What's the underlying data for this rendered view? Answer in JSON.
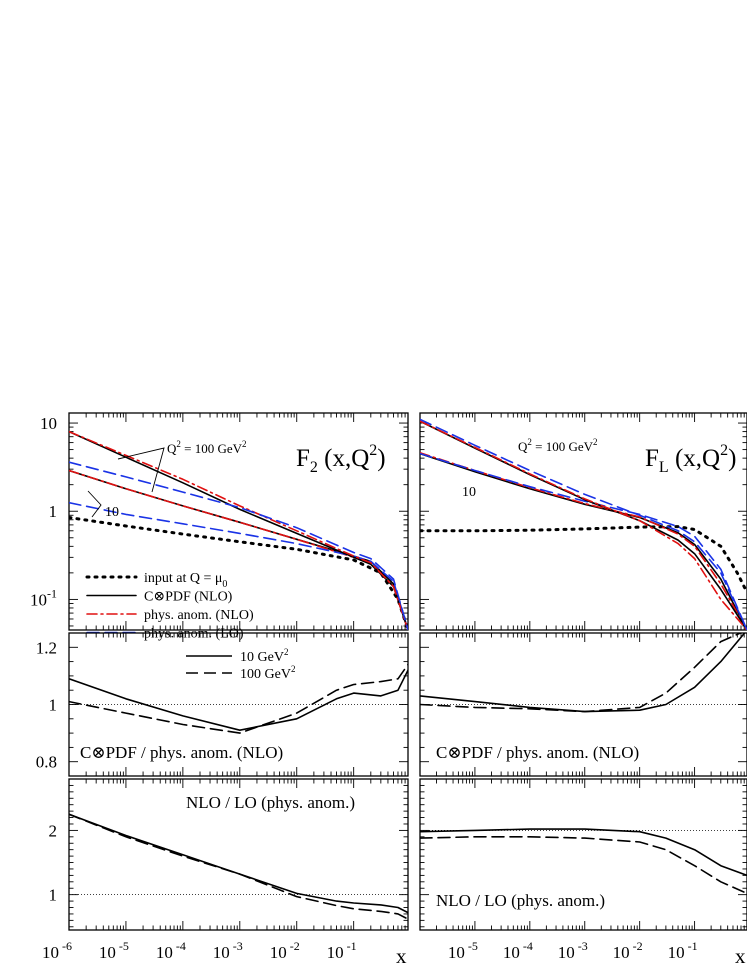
{
  "chart_data": [
    {
      "type": "line",
      "panel": "F2-main",
      "title_main": "F",
      "title_sub": "2",
      "title_arg": " (x,Q",
      "title_sup": "2",
      "title_close": ")",
      "x_scale": "log",
      "y_scale": "log",
      "xlim": [
        1e-06,
        0.9
      ],
      "ylim": [
        0.045,
        13
      ],
      "yticks": [
        {
          "value": 10,
          "base": "10",
          "exp": ""
        },
        {
          "value": 1,
          "base": "1",
          "exp": ""
        },
        {
          "value": 0.1,
          "base": "10",
          "exp": "-1"
        }
      ],
      "annotations": [
        {
          "text": "Q",
          "sup": "2",
          "rest": " = 100 GeV",
          "sup2": "2"
        },
        {
          "text": "10"
        }
      ],
      "legend": {
        "placement": "lower-left",
        "entries": [
          {
            "style": "dotted",
            "color": "#000000",
            "label": "input at Q = μ",
            "sub": "0"
          },
          {
            "style": "solid",
            "color": "#000000",
            "label": "C⊗PDF (NLO)"
          },
          {
            "style": "dashdot",
            "color": "#e01010",
            "label": "phys. anom. (NLO)"
          },
          {
            "style": "dashed",
            "color": "#1a33e6",
            "label": "phys. anom. (LO)"
          }
        ]
      },
      "series": [
        {
          "style": "dotted",
          "color": "#000000",
          "x": [
            1e-06,
            1e-05,
            0.0001,
            0.001,
            0.01,
            0.1,
            0.3,
            0.6,
            0.9
          ],
          "y": [
            0.85,
            0.68,
            0.55,
            0.45,
            0.37,
            0.28,
            0.2,
            0.1,
            0.045
          ]
        },
        {
          "style": "solid",
          "color": "#000000",
          "x": [
            1e-06,
            1e-05,
            0.0001,
            0.001,
            0.01,
            0.1,
            0.2,
            0.5,
            0.9
          ],
          "y": [
            2.9,
            1.8,
            1.15,
            0.75,
            0.48,
            0.31,
            0.27,
            0.15,
            0.045
          ]
        },
        {
          "style": "dashdot",
          "color": "#e01010",
          "x": [
            1e-06,
            1e-05,
            0.0001,
            0.001,
            0.01,
            0.1,
            0.2,
            0.5,
            0.9
          ],
          "y": [
            2.9,
            1.8,
            1.15,
            0.75,
            0.48,
            0.3,
            0.26,
            0.14,
            0.045
          ]
        },
        {
          "style": "dashed",
          "color": "#1a33e6",
          "x": [
            1e-06,
            1e-05,
            0.0001,
            0.001,
            0.01,
            0.1,
            0.2,
            0.5,
            0.9
          ],
          "y": [
            1.25,
            0.92,
            0.72,
            0.56,
            0.43,
            0.31,
            0.27,
            0.16,
            0.045
          ]
        },
        {
          "style": "solid",
          "color": "#000000",
          "x": [
            1e-06,
            1e-05,
            0.0001,
            0.001,
            0.01,
            0.1,
            0.2,
            0.5,
            0.9
          ],
          "y": [
            8.0,
            4.1,
            2.1,
            1.05,
            0.56,
            0.3,
            0.25,
            0.14,
            0.045
          ]
        },
        {
          "style": "dashdot",
          "color": "#e01010",
          "x": [
            1e-06,
            1e-05,
            0.0001,
            0.001,
            0.01,
            0.1,
            0.2,
            0.5,
            0.9
          ],
          "y": [
            8.0,
            4.3,
            2.3,
            1.15,
            0.6,
            0.31,
            0.26,
            0.14,
            0.045
          ]
        },
        {
          "style": "dashed",
          "color": "#1a33e6",
          "x": [
            1e-06,
            1e-05,
            0.0001,
            0.001,
            0.01,
            0.1,
            0.2,
            0.5,
            0.9
          ],
          "y": [
            3.6,
            2.45,
            1.65,
            1.1,
            0.65,
            0.34,
            0.29,
            0.17,
            0.045
          ]
        }
      ]
    },
    {
      "type": "line",
      "panel": "FL-main",
      "title_main": "F",
      "title_sub": "L",
      "title_arg": " (x,Q",
      "title_sup": "2",
      "title_close": ")",
      "x_scale": "log",
      "y_scale": "log",
      "xlim": [
        1e-06,
        0.9
      ],
      "ylim": [
        0.045,
        13
      ],
      "annotations": [
        {
          "text": "Q",
          "sup": "2",
          "rest": " = 100 GeV",
          "sup2": "2"
        },
        {
          "text": "10"
        }
      ],
      "series": [
        {
          "style": "dotted",
          "color": "#000000",
          "x": [
            1e-06,
            1e-05,
            0.0001,
            0.001,
            0.01,
            0.05,
            0.1,
            0.3,
            0.6,
            0.9
          ],
          "y": [
            0.6,
            0.6,
            0.61,
            0.63,
            0.66,
            0.67,
            0.62,
            0.4,
            0.2,
            0.12
          ]
        },
        {
          "style": "solid",
          "color": "#000000",
          "x": [
            1e-06,
            1e-05,
            0.0001,
            0.001,
            0.01,
            0.05,
            0.1,
            0.3,
            0.9
          ],
          "y": [
            4.5,
            2.8,
            1.8,
            1.2,
            0.85,
            0.57,
            0.42,
            0.17,
            0.045
          ]
        },
        {
          "style": "dashdot",
          "color": "#e01010",
          "x": [
            1e-06,
            1e-05,
            0.0001,
            0.001,
            0.01,
            0.05,
            0.1,
            0.3,
            0.9
          ],
          "y": [
            4.6,
            2.9,
            1.85,
            1.22,
            0.86,
            0.55,
            0.4,
            0.15,
            0.045
          ]
        },
        {
          "style": "dashed",
          "color": "#1a33e6",
          "x": [
            1e-06,
            1e-05,
            0.0001,
            0.001,
            0.01,
            0.05,
            0.1,
            0.3,
            0.9
          ],
          "y": [
            4.5,
            2.9,
            1.9,
            1.3,
            0.92,
            0.67,
            0.52,
            0.22,
            0.045
          ]
        },
        {
          "style": "solid",
          "color": "#000000",
          "x": [
            1e-06,
            1e-05,
            0.0001,
            0.001,
            0.01,
            0.05,
            0.1,
            0.3,
            0.9
          ],
          "y": [
            10.5,
            5.2,
            2.6,
            1.35,
            0.78,
            0.47,
            0.33,
            0.13,
            0.045
          ]
        },
        {
          "style": "dashdot",
          "color": "#e01010",
          "x": [
            1e-06,
            1e-05,
            0.0001,
            0.001,
            0.01,
            0.05,
            0.1,
            0.3,
            0.9
          ],
          "y": [
            10.5,
            5.3,
            2.65,
            1.38,
            0.78,
            0.43,
            0.29,
            0.1,
            0.045
          ]
        },
        {
          "style": "dashed",
          "color": "#1a33e6",
          "x": [
            1e-06,
            1e-05,
            0.0001,
            0.001,
            0.01,
            0.05,
            0.1,
            0.3,
            0.9
          ],
          "y": [
            11.0,
            5.6,
            2.9,
            1.55,
            0.9,
            0.6,
            0.45,
            0.2,
            0.045
          ]
        }
      ]
    },
    {
      "type": "line",
      "panel": "F2-ratio-pdf",
      "x_scale": "log",
      "y_scale": "linear",
      "xlim": [
        1e-06,
        0.9
      ],
      "ylim": [
        0.75,
        1.25
      ],
      "yticks": [
        {
          "value": 1.2,
          "base": "1.2",
          "exp": ""
        },
        {
          "value": 1,
          "base": "1",
          "exp": ""
        },
        {
          "value": 0.8,
          "base": "0.8",
          "exp": ""
        }
      ],
      "reference_line": 1,
      "label": "C⊗PDF / phys. anom. (NLO)",
      "legend": {
        "placement": "top-center",
        "entries": [
          {
            "style": "solid",
            "color": "#000000",
            "label": "10 GeV",
            "sup": "2"
          },
          {
            "style": "dashed",
            "color": "#000000",
            "label": "100 GeV",
            "sup": "2"
          }
        ]
      },
      "series": [
        {
          "name": "10 GeV²",
          "style": "solid",
          "color": "#000000",
          "x": [
            1e-06,
            1e-05,
            0.0001,
            0.001,
            0.01,
            0.05,
            0.1,
            0.3,
            0.6,
            0.9
          ],
          "y": [
            1.09,
            1.02,
            0.96,
            0.91,
            0.95,
            1.02,
            1.04,
            1.03,
            1.05,
            1.12
          ]
        },
        {
          "name": "100 GeV²",
          "style": "dashed",
          "color": "#000000",
          "x": [
            1e-06,
            1e-05,
            0.0001,
            0.001,
            0.01,
            0.05,
            0.1,
            0.3,
            0.6,
            0.9
          ],
          "y": [
            1.01,
            0.97,
            0.93,
            0.9,
            0.97,
            1.05,
            1.07,
            1.08,
            1.09,
            1.14
          ]
        }
      ]
    },
    {
      "type": "line",
      "panel": "FL-ratio-pdf",
      "x_scale": "log",
      "y_scale": "linear",
      "xlim": [
        1e-06,
        0.9
      ],
      "ylim": [
        0.75,
        1.25
      ],
      "reference_line": 1,
      "label": "C⊗PDF / phys. anom. (NLO)",
      "series": [
        {
          "name": "10 GeV²",
          "style": "solid",
          "color": "#000000",
          "x": [
            1e-06,
            1e-05,
            0.0001,
            0.001,
            0.01,
            0.03,
            0.1,
            0.3,
            0.9
          ],
          "y": [
            1.03,
            1.01,
            0.99,
            0.975,
            0.98,
            1.0,
            1.06,
            1.15,
            1.26
          ]
        },
        {
          "name": "100 GeV²",
          "style": "dashed",
          "color": "#000000",
          "x": [
            1e-06,
            1e-05,
            0.0001,
            0.001,
            0.01,
            0.03,
            0.1,
            0.3,
            0.9
          ],
          "y": [
            1.0,
            0.99,
            0.985,
            0.975,
            0.99,
            1.04,
            1.13,
            1.22,
            1.26
          ]
        }
      ]
    },
    {
      "type": "line",
      "panel": "F2-ratio-order",
      "x_scale": "log",
      "y_scale": "linear",
      "xlim": [
        1e-06,
        0.9
      ],
      "ylim": [
        0.45,
        2.8
      ],
      "yticks": [
        {
          "value": 2,
          "base": "2",
          "exp": ""
        },
        {
          "value": 1,
          "base": "1",
          "exp": ""
        }
      ],
      "reference_line": 1,
      "label": "NLO / LO (phys. anom.)",
      "xticks": [
        {
          "value": 1e-06,
          "base": "10",
          "exp": " -6"
        },
        {
          "value": 1e-05,
          "base": "10",
          "exp": " -5"
        },
        {
          "value": 0.0001,
          "base": "10",
          "exp": " -4"
        },
        {
          "value": 0.001,
          "base": "10",
          "exp": " -3"
        },
        {
          "value": 0.01,
          "base": "10",
          "exp": " -2"
        },
        {
          "value": 0.1,
          "base": "10",
          "exp": " -1"
        }
      ],
      "xlabel": "x",
      "series": [
        {
          "name": "10 GeV²",
          "style": "solid",
          "color": "#000000",
          "x": [
            1e-06,
            1e-05,
            0.0001,
            0.001,
            0.01,
            0.05,
            0.1,
            0.3,
            0.6,
            0.9
          ],
          "y": [
            2.25,
            1.92,
            1.62,
            1.32,
            1.02,
            0.9,
            0.87,
            0.84,
            0.8,
            0.72
          ]
        },
        {
          "name": "100 GeV²",
          "style": "dashed",
          "color": "#000000",
          "x": [
            1e-06,
            1e-05,
            0.0001,
            0.001,
            0.01,
            0.05,
            0.1,
            0.3,
            0.6,
            0.9
          ],
          "y": [
            2.25,
            1.9,
            1.6,
            1.32,
            0.97,
            0.83,
            0.78,
            0.74,
            0.7,
            0.62
          ]
        }
      ]
    },
    {
      "type": "line",
      "panel": "FL-ratio-order",
      "x_scale": "log",
      "y_scale": "linear",
      "xlim": [
        1e-06,
        0.9
      ],
      "ylim": [
        0.45,
        2.8
      ],
      "reference_line": 2,
      "label": "NLO / LO (phys. anom.)",
      "xticks": [
        {
          "value": 1e-05,
          "base": "10",
          "exp": " -5"
        },
        {
          "value": 0.0001,
          "base": "10",
          "exp": " -4"
        },
        {
          "value": 0.001,
          "base": "10",
          "exp": " -3"
        },
        {
          "value": 0.01,
          "base": "10",
          "exp": " -2"
        },
        {
          "value": 0.1,
          "base": "10",
          "exp": " -1"
        }
      ],
      "xlabel": "x",
      "series": [
        {
          "name": "10 GeV²",
          "style": "solid",
          "color": "#000000",
          "x": [
            1e-06,
            1e-05,
            0.0001,
            0.001,
            0.01,
            0.03,
            0.1,
            0.3,
            0.9
          ],
          "y": [
            1.98,
            2.0,
            2.02,
            2.02,
            1.98,
            1.88,
            1.7,
            1.45,
            1.3
          ]
        },
        {
          "name": "100 GeV²",
          "style": "dashed",
          "color": "#000000",
          "x": [
            1e-06,
            1e-05,
            0.0001,
            0.001,
            0.01,
            0.03,
            0.1,
            0.3,
            0.9
          ],
          "y": [
            1.88,
            1.9,
            1.9,
            1.88,
            1.82,
            1.7,
            1.45,
            1.2,
            1.02
          ]
        }
      ]
    }
  ]
}
